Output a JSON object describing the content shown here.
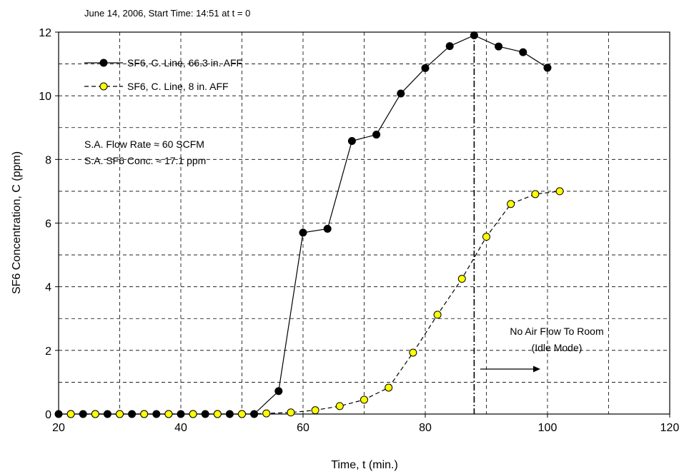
{
  "chart_data": {
    "type": "line",
    "title": "June 14, 2006,  Start Time: 14:51 at t = 0",
    "xlabel": "Time, t (min.)",
    "ylabel": "SF6 Concentration, C (ppm)",
    "xlim": [
      20,
      120
    ],
    "ylim": [
      0,
      12
    ],
    "x_ticks": [
      20,
      40,
      60,
      80,
      100,
      120
    ],
    "y_ticks": [
      0,
      2,
      4,
      6,
      8,
      10,
      12
    ],
    "grid": true,
    "legend_position": "top-left",
    "series": [
      {
        "name": "SF6, C. Line, 66.3 in. AFF",
        "color": "#000000",
        "marker_fill": "#000000",
        "line_style": "solid",
        "x": [
          20,
          22,
          24,
          26,
          28,
          30,
          32,
          34,
          36,
          38,
          40,
          42,
          44,
          46,
          48,
          50,
          52,
          56,
          60,
          64,
          68,
          72,
          76,
          80,
          84,
          88,
          92,
          96,
          100
        ],
        "y": [
          0,
          0,
          0,
          0,
          0,
          0,
          0,
          0,
          0,
          0,
          0,
          0,
          0,
          0,
          0,
          0,
          0,
          0.72,
          5.7,
          5.82,
          8.58,
          8.78,
          10.07,
          10.87,
          11.56,
          11.9,
          11.55,
          11.37,
          10.88
        ]
      },
      {
        "name": "SF6, C. Line, 8 in. AFF",
        "color": "#000000",
        "marker_fill": "#ffff00",
        "line_style": "dashed",
        "x": [
          22,
          26,
          30,
          34,
          38,
          42,
          46,
          50,
          54,
          58,
          62,
          66,
          70,
          74,
          78,
          82,
          86,
          90,
          94,
          98,
          102
        ],
        "y": [
          0,
          0,
          0,
          0,
          0,
          0,
          0,
          0,
          0.02,
          0.05,
          0.12,
          0.25,
          0.45,
          0.83,
          1.93,
          3.12,
          4.25,
          5.57,
          6.6,
          6.91,
          7.0
        ]
      }
    ],
    "vertical_line": {
      "x": 88,
      "style": "dash-dot"
    },
    "annotations": {
      "flow_rate": "S.A. Flow Rate ≈ 60 SCFM",
      "sf6_conc": "S.A. SF6 Conc. ≈ 17.1 ppm",
      "no_air_line1": "No Air Flow To Room",
      "no_air_line2": "(Idle Mode)"
    }
  }
}
